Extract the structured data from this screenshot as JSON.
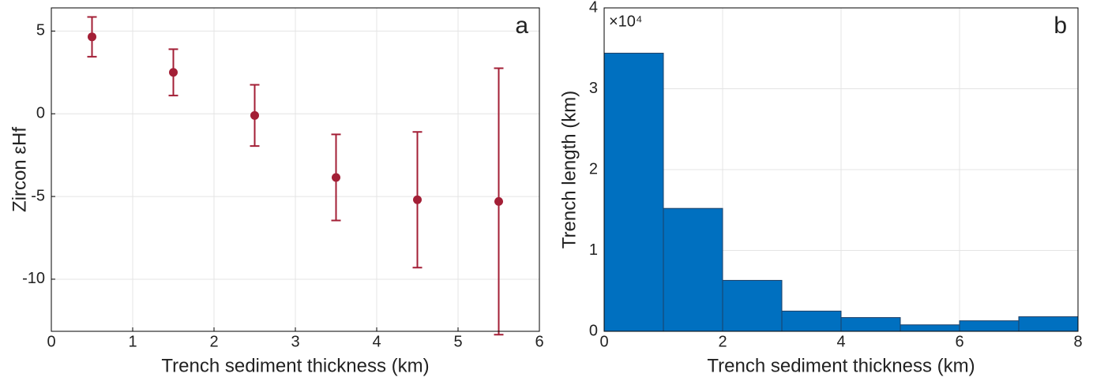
{
  "chart_data": [
    {
      "type": "scatter",
      "panel_label": "a",
      "xlabel": "Trench sediment thickness (km)",
      "ylabel": "Zircon εHf",
      "x": [
        0.5,
        1.5,
        2.5,
        3.5,
        4.5,
        5.5
      ],
      "series": [
        {
          "name": "Zircon εHf",
          "color": "#a31f36",
          "values": [
            4.65,
            2.5,
            -0.1,
            -3.85,
            -5.2,
            -5.3
          ],
          "errors": [
            1.2,
            1.4,
            1.85,
            2.6,
            4.1,
            8.05
          ]
        }
      ],
      "xlim": [
        0,
        6
      ],
      "xticks": [
        0,
        1,
        2,
        3,
        4,
        5,
        6
      ],
      "ylim": [
        -13.15,
        6.4
      ],
      "yticks": [
        -10,
        -5,
        0,
        5
      ],
      "grid": true
    },
    {
      "type": "histogram",
      "panel_label": "b",
      "xlabel": "Trench sediment thickness (km)",
      "ylabel": "Trench length (km)",
      "y_multiplier": "×10⁴",
      "bins": [
        0,
        1,
        2,
        3,
        4,
        5,
        6,
        7,
        8
      ],
      "values": [
        34400,
        15200,
        6300,
        2500,
        1700,
        800,
        1300,
        1800
      ],
      "color": "#0070c0",
      "edgecolor": "#1d3f66",
      "xlim": [
        0,
        8
      ],
      "xticks": [
        0,
        2,
        4,
        6,
        8
      ],
      "ylim": [
        0,
        40000
      ],
      "yticks": [
        {
          "value": 0,
          "label": "0"
        },
        {
          "value": 10000,
          "label": "1"
        },
        {
          "value": 20000,
          "label": "2"
        },
        {
          "value": 30000,
          "label": "3"
        },
        {
          "value": 40000,
          "label": "4"
        }
      ],
      "grid": true
    }
  ]
}
